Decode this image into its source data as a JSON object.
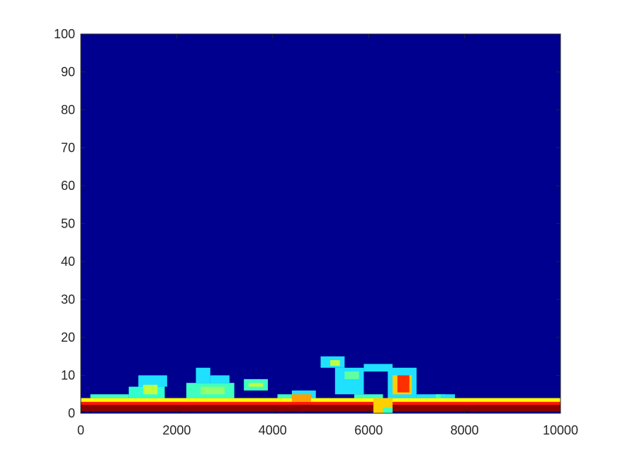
{
  "chart_data": {
    "type": "heatmap",
    "title": "",
    "xlabel": "",
    "ylabel": "",
    "xlim": [
      0,
      10000
    ],
    "ylim": [
      0,
      100
    ],
    "x_ticks": [
      {
        "value": 0,
        "label": "0"
      },
      {
        "value": 2000,
        "label": "2000"
      },
      {
        "value": 4000,
        "label": "4000"
      },
      {
        "value": 6000,
        "label": "6000"
      },
      {
        "value": 8000,
        "label": "8000"
      },
      {
        "value": 10000,
        "label": "10000"
      }
    ],
    "y_ticks": [
      {
        "value": 0,
        "label": "0"
      },
      {
        "value": 10,
        "label": "10"
      },
      {
        "value": 20,
        "label": "20"
      },
      {
        "value": 30,
        "label": "30"
      },
      {
        "value": 40,
        "label": "40"
      },
      {
        "value": 50,
        "label": "50"
      },
      {
        "value": 60,
        "label": "60"
      },
      {
        "value": 70,
        "label": "70"
      },
      {
        "value": 80,
        "label": "80"
      },
      {
        "value": 90,
        "label": "90"
      },
      {
        "value": 100,
        "label": "100"
      }
    ],
    "colormap": "jet",
    "background_color": "#00008f",
    "grid": false,
    "legend": "none",
    "regions": [
      {
        "x0": 0,
        "x1": 10000,
        "y0": 3,
        "y1": 4,
        "color": "#ffff00"
      },
      {
        "x0": 0,
        "x1": 10000,
        "y0": 2.2,
        "y1": 3,
        "color": "#ff1a00"
      },
      {
        "x0": 0,
        "x1": 10000,
        "y0": 0.5,
        "y1": 2.2,
        "color": "#8c0000"
      },
      {
        "x0": 0,
        "x1": 10000,
        "y0": 0,
        "y1": 0.5,
        "color": "#00008f"
      },
      {
        "x0": 200,
        "x1": 1000,
        "y0": 4,
        "y1": 5,
        "color": "#40ffbf"
      },
      {
        "x0": 1000,
        "x1": 1750,
        "y0": 4,
        "y1": 7,
        "color": "#30ffd0"
      },
      {
        "x0": 1200,
        "x1": 1800,
        "y0": 7,
        "y1": 10,
        "color": "#20e0ff"
      },
      {
        "x0": 1300,
        "x1": 1600,
        "y0": 5,
        "y1": 7.5,
        "color": "#c0ff40"
      },
      {
        "x0": 2200,
        "x1": 3200,
        "y0": 4,
        "y1": 8,
        "color": "#40ffbf"
      },
      {
        "x0": 2400,
        "x1": 2700,
        "y0": 8,
        "y1": 12,
        "color": "#20e0ff"
      },
      {
        "x0": 2700,
        "x1": 3100,
        "y0": 8,
        "y1": 10,
        "color": "#20e0ff"
      },
      {
        "x0": 2500,
        "x1": 3000,
        "y0": 5,
        "y1": 7,
        "color": "#90ff70"
      },
      {
        "x0": 3400,
        "x1": 3900,
        "y0": 6,
        "y1": 9,
        "color": "#40ffbf"
      },
      {
        "x0": 3500,
        "x1": 3800,
        "y0": 7,
        "y1": 8,
        "color": "#c0ff40"
      },
      {
        "x0": 4100,
        "x1": 4400,
        "y0": 4,
        "y1": 5,
        "color": "#40ffbf"
      },
      {
        "x0": 4400,
        "x1": 4900,
        "y0": 4,
        "y1": 6,
        "color": "#20e0ff"
      },
      {
        "x0": 4400,
        "x1": 4800,
        "y0": 3,
        "y1": 5,
        "color": "#ffa000"
      },
      {
        "x0": 5000,
        "x1": 5500,
        "y0": 12,
        "y1": 15,
        "color": "#20e0ff"
      },
      {
        "x0": 5200,
        "x1": 5400,
        "y0": 12.5,
        "y1": 14,
        "color": "#c0ff40"
      },
      {
        "x0": 5300,
        "x1": 5900,
        "y0": 5,
        "y1": 12,
        "color": "#20e0ff"
      },
      {
        "x0": 5500,
        "x1": 5800,
        "y0": 9,
        "y1": 11,
        "color": "#60ffa0"
      },
      {
        "x0": 5900,
        "x1": 6500,
        "y0": 11,
        "y1": 13,
        "color": "#20e0ff"
      },
      {
        "x0": 5700,
        "x1": 6300,
        "y0": 4,
        "y1": 5,
        "color": "#40ffbf"
      },
      {
        "x0": 6100,
        "x1": 6500,
        "y0": 0,
        "y1": 4,
        "color": "#ffd000"
      },
      {
        "x0": 6300,
        "x1": 6500,
        "y0": 0,
        "y1": 1.5,
        "color": "#40ffbf"
      },
      {
        "x0": 6400,
        "x1": 7000,
        "y0": 4,
        "y1": 12,
        "color": "#20e0ff"
      },
      {
        "x0": 6500,
        "x1": 6900,
        "y0": 5,
        "y1": 10,
        "color": "#ffd000"
      },
      {
        "x0": 6600,
        "x1": 6850,
        "y0": 5.5,
        "y1": 10,
        "color": "#ff3000"
      },
      {
        "x0": 7000,
        "x1": 7500,
        "y0": 4,
        "y1": 5,
        "color": "#20e0ff"
      },
      {
        "x0": 7400,
        "x1": 7600,
        "y0": 4,
        "y1": 5,
        "color": "#40ffbf"
      },
      {
        "x0": 7500,
        "x1": 7800,
        "y0": 4,
        "y1": 5,
        "color": "#20e0ff"
      }
    ]
  }
}
